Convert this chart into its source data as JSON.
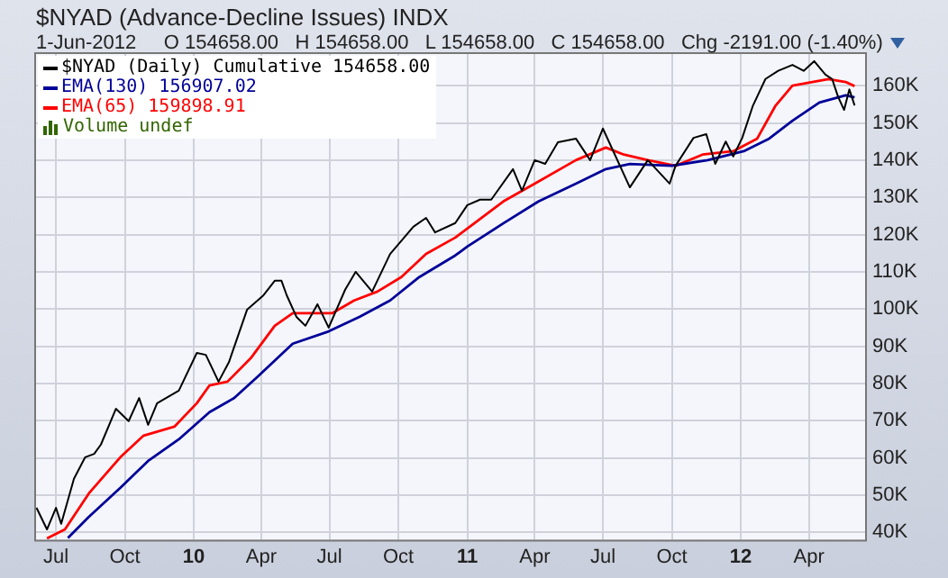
{
  "chart_data": {
    "type": "line",
    "title": "$NYAD (Advance-Decline Issues) INDX",
    "subtitle": "1-Jun-2012     O 154658.00   H 154658.00   L 154658.00   C 154658.00   Chg -2191.00 (-1.40%)",
    "annotations": [
      "Volume undef"
    ],
    "series": [
      {
        "name": "$NYAD (Daily) Cumulative 154658.00",
        "color": "#000000",
        "x": [
          "2009-06-05",
          "2009-06-19",
          "2009-07-01",
          "2009-07-08",
          "2009-07-25",
          "2009-08-09",
          "2009-08-21",
          "2009-08-30",
          "2009-09-19",
          "2009-10-06",
          "2009-10-20",
          "2009-11-01",
          "2009-11-13",
          "2009-12-12",
          "2010-01-05",
          "2010-01-17",
          "2010-02-03",
          "2010-02-17",
          "2010-03-13",
          "2010-04-04",
          "2010-04-19",
          "2010-04-28",
          "2010-05-05",
          "2010-05-18",
          "2010-05-30",
          "2010-06-15",
          "2010-06-30",
          "2010-07-22",
          "2010-08-05",
          "2010-08-27",
          "2010-09-20",
          "2010-10-21",
          "2010-11-07",
          "2010-11-19",
          "2010-12-16",
          "2011-01-01",
          "2011-01-18",
          "2011-02-02",
          "2011-03-03",
          "2011-03-15",
          "2011-04-01",
          "2011-04-15",
          "2011-05-02",
          "2011-05-26",
          "2011-06-14",
          "2011-07-01",
          "2011-08-06",
          "2011-08-30",
          "2011-09-28",
          "2011-10-06",
          "2011-10-30",
          "2011-11-16",
          "2011-11-28",
          "2011-12-12",
          "2011-12-22",
          "2012-01-03",
          "2012-01-17",
          "2012-02-03",
          "2012-02-20",
          "2012-03-10",
          "2012-03-25",
          "2012-04-08",
          "2012-04-23",
          "2012-05-02",
          "2012-05-10",
          "2012-05-18",
          "2012-05-25",
          "2012-06-01"
        ],
        "values": [
          46600,
          40800,
          46600,
          42300,
          54400,
          60200,
          61100,
          63600,
          73200,
          69900,
          76100,
          68900,
          74700,
          78100,
          88200,
          87700,
          80500,
          85800,
          99800,
          103700,
          107600,
          107600,
          103700,
          97900,
          95500,
          101300,
          95000,
          105200,
          110000,
          104700,
          114800,
          122100,
          124500,
          120600,
          123100,
          127900,
          129400,
          129400,
          137600,
          131800,
          140000,
          139000,
          144800,
          145800,
          140000,
          148500,
          132700,
          140000,
          133700,
          138500,
          146000,
          147000,
          139000,
          145000,
          141000,
          146000,
          154500,
          161800,
          164000,
          165600,
          164000,
          166600,
          163000,
          161800,
          157000,
          153500,
          159000,
          154700
        ]
      },
      {
        "name": "EMA(130) 156907.02",
        "color": "#000099",
        "x": [
          "2009-07-17",
          "2009-08-14",
          "2009-09-25",
          "2009-11-01",
          "2009-12-12",
          "2010-01-22",
          "2010-02-24",
          "2010-03-28",
          "2010-05-13",
          "2010-06-30",
          "2010-08-10",
          "2010-09-20",
          "2010-10-29",
          "2010-12-16",
          "2011-01-01",
          "2011-02-18",
          "2011-04-06",
          "2011-05-26",
          "2011-07-05",
          "2011-08-06",
          "2011-10-01",
          "2011-11-18",
          "2012-01-05",
          "2012-02-08",
          "2012-03-10",
          "2012-04-15",
          "2012-05-20",
          "2012-06-01"
        ],
        "values": [
          38500,
          44200,
          52000,
          59200,
          65000,
          72300,
          76100,
          82000,
          90700,
          94000,
          97900,
          102300,
          108600,
          114400,
          116800,
          123000,
          128900,
          133700,
          137600,
          139000,
          138500,
          140000,
          142400,
          145800,
          150600,
          155500,
          157400,
          156900
        ]
      },
      {
        "name": "EMA(65) 159898.91",
        "color": "#ff0000",
        "x": [
          "2009-06-19",
          "2009-07-13",
          "2009-08-14",
          "2009-09-25",
          "2009-10-26",
          "2009-12-06",
          "2010-01-05",
          "2010-01-22",
          "2010-02-15",
          "2010-03-18",
          "2010-04-19",
          "2010-05-13",
          "2010-06-06",
          "2010-07-05",
          "2010-08-03",
          "2010-09-03",
          "2010-10-05",
          "2010-11-07",
          "2010-12-16",
          "2011-01-01",
          "2011-02-18",
          "2011-04-01",
          "2011-05-26",
          "2011-07-05",
          "2011-07-29",
          "2011-08-30",
          "2011-10-06",
          "2011-11-11",
          "2011-12-22",
          "2012-01-23",
          "2012-02-16",
          "2012-03-10",
          "2012-04-27",
          "2012-05-20",
          "2012-06-01"
        ],
        "values": [
          38400,
          40800,
          50500,
          60200,
          66000,
          68400,
          74700,
          79500,
          80500,
          86800,
          95500,
          98900,
          98900,
          98900,
          102300,
          104700,
          108600,
          114800,
          119200,
          121600,
          128900,
          133700,
          140000,
          143400,
          141500,
          140000,
          138500,
          141500,
          142400,
          145800,
          154500,
          160000,
          161800,
          161000,
          159900
        ]
      }
    ],
    "xlim": [
      "2009-06-02",
      "2012-06-15"
    ],
    "xticks": [
      {
        "value": "2009-07-01",
        "label": "Jul"
      },
      {
        "value": "2009-10-01",
        "label": "Oct"
      },
      {
        "value": "2010-01-01",
        "label": "10"
      },
      {
        "value": "2010-04-01",
        "label": "Apr"
      },
      {
        "value": "2010-07-01",
        "label": "Jul"
      },
      {
        "value": "2010-10-01",
        "label": "Oct"
      },
      {
        "value": "2011-01-01",
        "label": "11"
      },
      {
        "value": "2011-04-01",
        "label": "Apr"
      },
      {
        "value": "2011-07-01",
        "label": "Jul"
      },
      {
        "value": "2011-10-01",
        "label": "Oct"
      },
      {
        "value": "2012-01-01",
        "label": "12"
      },
      {
        "value": "2012-04-01",
        "label": "Apr"
      }
    ],
    "ylim": [
      38000,
      169000
    ],
    "yticks": [
      {
        "value": 40000,
        "label": "40K"
      },
      {
        "value": 50000,
        "label": "50K"
      },
      {
        "value": 60000,
        "label": "60K"
      },
      {
        "value": 70000,
        "label": "70K"
      },
      {
        "value": 80000,
        "label": "80K"
      },
      {
        "value": 90000,
        "label": "90K"
      },
      {
        "value": 100000,
        "label": "100K"
      },
      {
        "value": 110000,
        "label": "110K"
      },
      {
        "value": 120000,
        "label": "120K"
      },
      {
        "value": 130000,
        "label": "130K"
      },
      {
        "value": 140000,
        "label": "140K"
      },
      {
        "value": 150000,
        "label": "150K"
      },
      {
        "value": 160000,
        "label": "160K"
      }
    ],
    "grid": true,
    "legend": "top left",
    "marker": "none",
    "line_style": "solid"
  }
}
